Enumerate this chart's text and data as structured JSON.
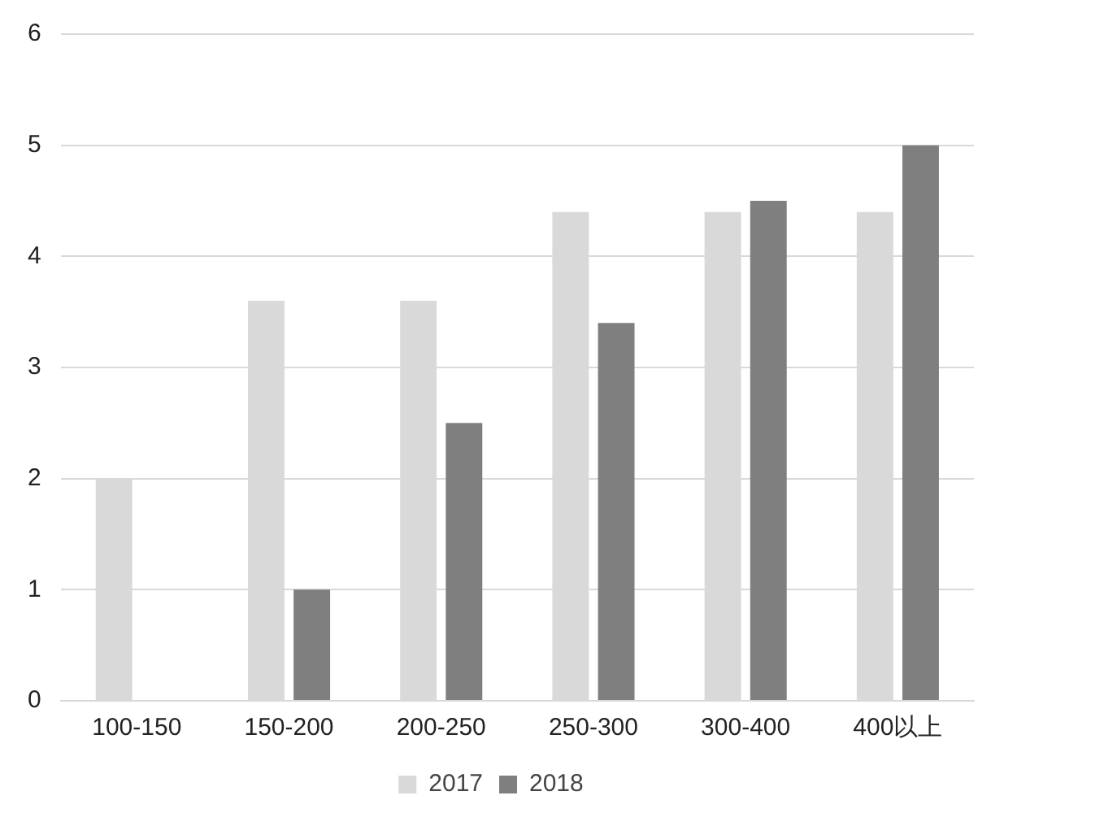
{
  "chart_data": {
    "type": "bar",
    "categories": [
      "100-150",
      "150-200",
      "200-250",
      "250-300",
      "300-400",
      "400以上"
    ],
    "series": [
      {
        "name": "2017",
        "color": "#d9d9d9",
        "values": [
          2,
          3.6,
          3.6,
          4.4,
          4.4,
          4.4
        ]
      },
      {
        "name": "2018",
        "color": "#7f7f7f",
        "values": [
          null,
          1,
          2.5,
          3.4,
          4.5,
          5
        ]
      }
    ],
    "ylim": [
      0,
      6
    ],
    "yticks": [
      0,
      1,
      2,
      3,
      4,
      5,
      6
    ],
    "grid": "y",
    "legend": "bottom"
  }
}
